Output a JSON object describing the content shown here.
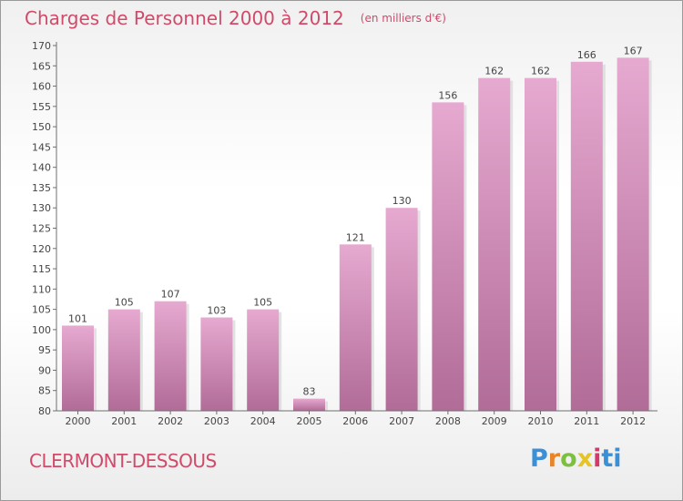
{
  "title": "Charges de Personnel 2000 à 2012",
  "subtitle": "(en milliers d'€)",
  "commune": "CLERMONT-DESSOUS",
  "logo": {
    "text": "Proxiti",
    "parts": [
      "P",
      "r",
      "o",
      "x",
      "i",
      "ti"
    ]
  },
  "colors": {
    "accent": "#d14a6a",
    "bar_top": "#e6a9d0",
    "bar_bottom": "#b16c98",
    "axis": "#6f6f6f",
    "text": "#444444"
  },
  "chart_data": {
    "type": "bar",
    "title": "Charges de Personnel 2000 à 2012",
    "categories": [
      "2000",
      "2001",
      "2002",
      "2003",
      "2004",
      "2005",
      "2006",
      "2007",
      "2008",
      "2009",
      "2010",
      "2011",
      "2012"
    ],
    "values": [
      101,
      105,
      107,
      103,
      105,
      83,
      121,
      130,
      156,
      162,
      162,
      166,
      167
    ],
    "data_labels": [
      "101",
      "105",
      "107",
      "103",
      "105",
      "83",
      "121",
      "130",
      "156",
      "162",
      "162",
      "166",
      "167"
    ],
    "yticks": [
      "80",
      "85",
      "90",
      "95",
      "100",
      "105",
      "110",
      "115",
      "120",
      "125",
      "130",
      "135",
      "140",
      "145",
      "150",
      "155",
      "160",
      "165",
      "170"
    ],
    "ylim": [
      80,
      170
    ],
    "xlabel": "",
    "ylabel": "",
    "grid": false,
    "legend": "none"
  }
}
